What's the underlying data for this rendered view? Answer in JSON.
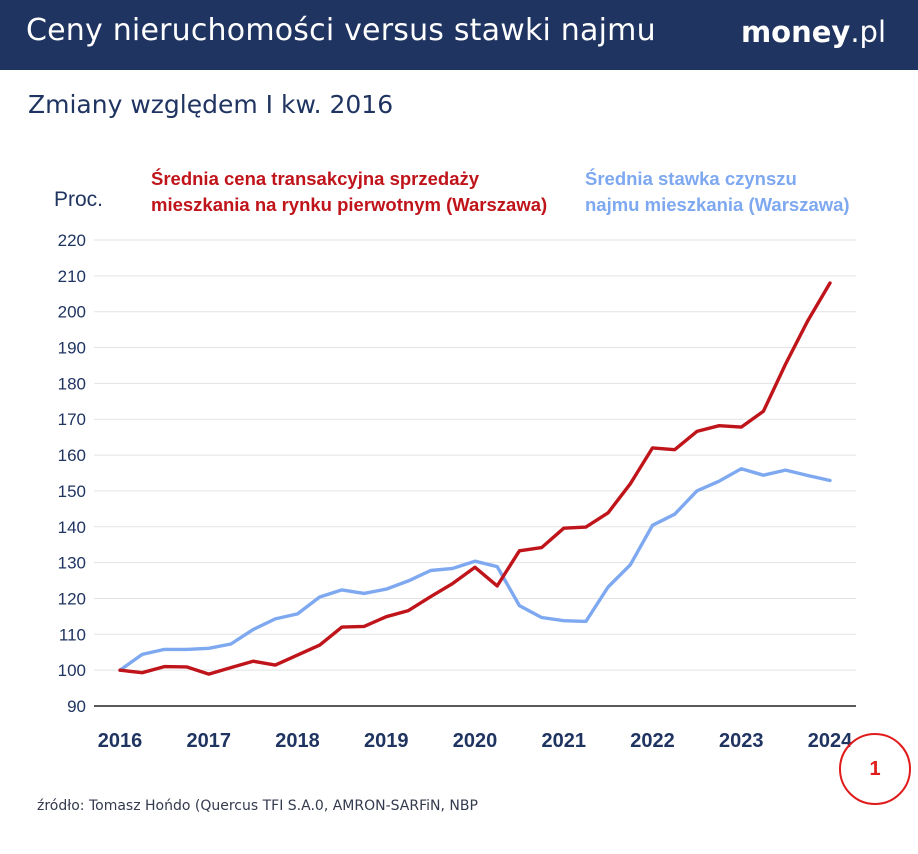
{
  "header": {
    "title": "Ceny nieruchomości versus stawki najmu",
    "brand_bold": "money",
    "brand_light": ".pl"
  },
  "subtitle": "Zmiany względem I kw. 2016",
  "source": "źródło: Tomasz Hońdo (Quercus TFI S.A.0, AMRON-SARFiN, NBP",
  "marker_label": "1",
  "colors": {
    "header_bg": "#1f3461",
    "sales": "#c0141b",
    "rent": "#7ea8f0",
    "text": "#1f3461",
    "grid": "#e3e3e3"
  },
  "chart_data": {
    "type": "line",
    "ylabel": "Proc.",
    "ylim": [
      90,
      220
    ],
    "yticks": [
      "90",
      "100",
      "110",
      "120",
      "130",
      "140",
      "150",
      "160",
      "170",
      "180",
      "190",
      "200",
      "210",
      "220"
    ],
    "xlim": [
      2016,
      2024
    ],
    "xticks": [
      "2016",
      "2017",
      "2018",
      "2019",
      "2020",
      "2021",
      "2022",
      "2023",
      "2024"
    ],
    "grid": "horizontal",
    "series": [
      {
        "name_lines": [
          "Średnia cena transakcyjna sprzedaży",
          "mieszkania na rynku pierwotnym (Warszawa)"
        ],
        "color": "#c0141b",
        "x": [
          2016.0,
          2016.25,
          2016.5,
          2016.75,
          2017.0,
          2017.25,
          2017.5,
          2017.75,
          2018.0,
          2018.25,
          2018.5,
          2018.75,
          2019.0,
          2019.25,
          2019.5,
          2019.75,
          2020.0,
          2020.25,
          2020.5,
          2020.75,
          2021.0,
          2021.25,
          2021.5,
          2021.75,
          2022.0,
          2022.25,
          2022.5,
          2022.75,
          2023.0,
          2023.25,
          2023.5,
          2023.75,
          2024.0
        ],
        "y": [
          100,
          99.3,
          101,
          100.9,
          98.9,
          100.7,
          102.5,
          101.4,
          104.2,
          107,
          112,
          112.2,
          114.9,
          116.6,
          120.5,
          124.2,
          128.7,
          123.5,
          133.3,
          134.2,
          139.6,
          139.9,
          143.9,
          152,
          162,
          161.5,
          166.6,
          168.2,
          167.8,
          172.2,
          185.4,
          197.5,
          208
        ]
      },
      {
        "name_lines": [
          "Średnia stawka czynszu",
          "najmu mieszkania (Warszawa)"
        ],
        "color": "#7ea8f0",
        "x": [
          2016.0,
          2016.25,
          2016.5,
          2016.75,
          2017.0,
          2017.25,
          2017.5,
          2017.75,
          2018.0,
          2018.25,
          2018.5,
          2018.75,
          2019.0,
          2019.25,
          2019.5,
          2019.75,
          2020.0,
          2020.25,
          2020.5,
          2020.75,
          2021.0,
          2021.25,
          2021.5,
          2021.75,
          2022.0,
          2022.25,
          2022.5,
          2022.75,
          2023.0,
          2023.25,
          2023.5,
          2023.75,
          2024.0
        ],
        "y": [
          100,
          104.4,
          105.8,
          105.8,
          106.1,
          107.3,
          111.3,
          114.3,
          115.7,
          120.4,
          122.4,
          121.4,
          122.6,
          124.9,
          127.8,
          128.4,
          130.4,
          128.9,
          118,
          114.7,
          113.8,
          113.6,
          123.2,
          129.4,
          140.4,
          143.5,
          150,
          152.7,
          156.2,
          154.4,
          155.8,
          154.3,
          152.9
        ]
      }
    ]
  }
}
